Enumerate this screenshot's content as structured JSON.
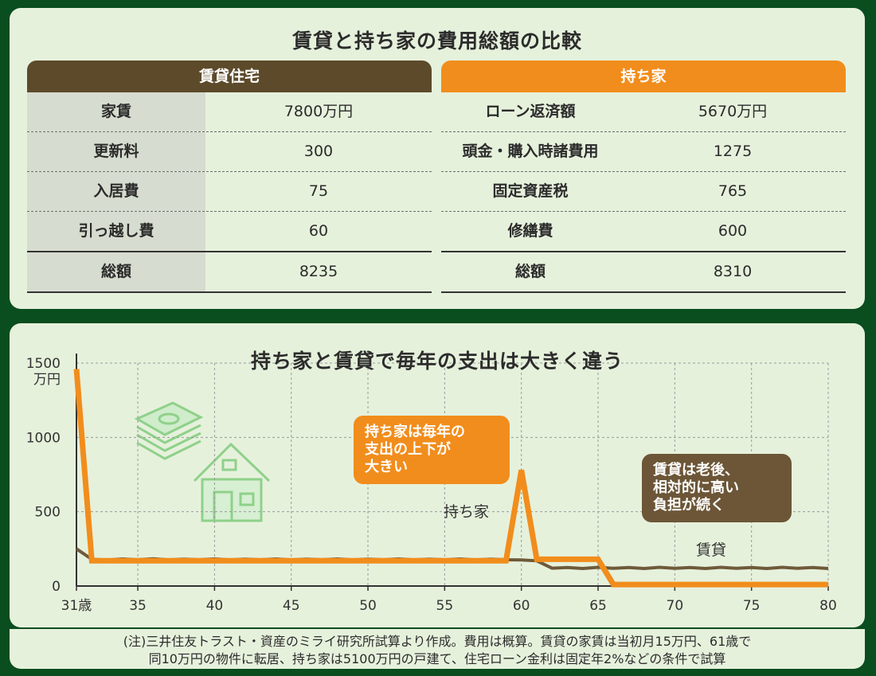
{
  "summary": {
    "title": "賃貸と持ち家の費用総額の比較",
    "rent": {
      "header": "賃貸住宅",
      "rows": [
        {
          "label": "家賃",
          "value": "7800万円"
        },
        {
          "label": "更新料",
          "value": "300"
        },
        {
          "label": "入居費",
          "value": "75"
        },
        {
          "label": "引っ越し費",
          "value": "60"
        },
        {
          "label": "総額",
          "value": "8235"
        }
      ]
    },
    "own": {
      "header": "持ち家",
      "rows": [
        {
          "label": "ローン返済額",
          "value": "5670万円"
        },
        {
          "label": "頭金・購入時諸費用",
          "value": "1275"
        },
        {
          "label": "固定資産税",
          "value": "765"
        },
        {
          "label": "修繕費",
          "value": "600"
        },
        {
          "label": "総額",
          "value": "8310"
        }
      ]
    }
  },
  "chart_data": {
    "type": "line",
    "title": "持ち家と賃貸で毎年の支出は大きく違う",
    "y_unit": "万円",
    "ylim": [
      0,
      1500
    ],
    "yticks": [
      0,
      500,
      1000,
      1500
    ],
    "xlim": [
      31,
      80
    ],
    "xticks": [
      31,
      35,
      40,
      45,
      50,
      55,
      60,
      65,
      70,
      75,
      80
    ],
    "x_first_tick_label": "31歳",
    "colors": {
      "own": "#f18d1c",
      "rent": "#6e5a3a"
    },
    "series": [
      {
        "name": "持ち家",
        "key": "own",
        "points": [
          [
            31,
            1460
          ],
          [
            32,
            170
          ],
          [
            59,
            170
          ],
          [
            60,
            780
          ],
          [
            61,
            180
          ],
          [
            65,
            180
          ],
          [
            66,
            10
          ],
          [
            80,
            10
          ]
        ]
      },
      {
        "name": "賃貸",
        "key": "rent",
        "points": [
          [
            31,
            250
          ],
          [
            32,
            180
          ],
          [
            33,
            175
          ],
          [
            34,
            182
          ],
          [
            35,
            177
          ],
          [
            36,
            183
          ],
          [
            37,
            176
          ],
          [
            38,
            181
          ],
          [
            39,
            177
          ],
          [
            40,
            182
          ],
          [
            41,
            176
          ],
          [
            42,
            181
          ],
          [
            43,
            177
          ],
          [
            44,
            182
          ],
          [
            45,
            176
          ],
          [
            46,
            181
          ],
          [
            47,
            177
          ],
          [
            48,
            182
          ],
          [
            49,
            176
          ],
          [
            50,
            181
          ],
          [
            51,
            177
          ],
          [
            52,
            182
          ],
          [
            53,
            176
          ],
          [
            54,
            181
          ],
          [
            55,
            177
          ],
          [
            56,
            182
          ],
          [
            57,
            176
          ],
          [
            58,
            181
          ],
          [
            59,
            177
          ],
          [
            60,
            175
          ],
          [
            61,
            170
          ],
          [
            62,
            120
          ],
          [
            63,
            125
          ],
          [
            64,
            118
          ],
          [
            65,
            126
          ],
          [
            66,
            119
          ],
          [
            67,
            125
          ],
          [
            68,
            118
          ],
          [
            69,
            126
          ],
          [
            70,
            119
          ],
          [
            71,
            125
          ],
          [
            72,
            118
          ],
          [
            73,
            126
          ],
          [
            74,
            119
          ],
          [
            75,
            125
          ],
          [
            76,
            118
          ],
          [
            77,
            126
          ],
          [
            78,
            119
          ],
          [
            79,
            125
          ],
          [
            80,
            118
          ]
        ]
      }
    ],
    "annotations": {
      "own_bubble": "持ち家は毎年の\n支出の上下が\n大きい",
      "rent_bubble": "賃貸は老後、\n相対的に高い\n負担が続く"
    }
  },
  "footnote": {
    "line1": "(注)三井住友トラスト・資産のミライ研究所試算より作成。費用は概算。賃貸の家賃は当初月15万円、61歳で",
    "line2": "同10万円の物件に転居、持ち家は5100万円の戸建て、住宅ローン金利は固定年2%などの条件で試算"
  }
}
